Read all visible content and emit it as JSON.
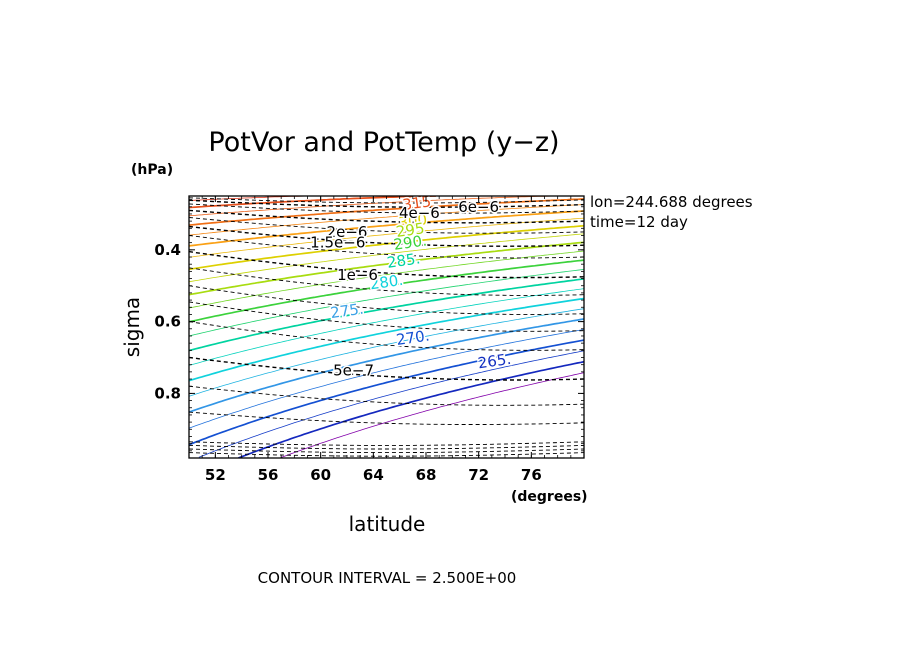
{
  "chart_data": {
    "type": "contour",
    "title": "PotVor and PotTemp (y−z)",
    "xlabel": "latitude",
    "xunit": "(degrees)",
    "ylabel": "sigma",
    "yunit": "(hPa)",
    "xlim": [
      50,
      80
    ],
    "ylim": [
      0.25,
      0.98
    ],
    "xticks": [
      52,
      56,
      60,
      64,
      68,
      72,
      76
    ],
    "xtick_labels": [
      "52",
      "56",
      "60",
      "64",
      "68",
      "72",
      "76"
    ],
    "yticks": [
      0.4,
      0.6,
      0.8
    ],
    "ytick_labels": [
      "0.4",
      "0.6",
      "0.8"
    ],
    "annotations": [
      "lon=244.688 degrees",
      "time=12 day"
    ],
    "footer": "CONTOUR INTERVAL = 2.500E+00",
    "pottemp_labels": [
      {
        "text": "315",
        "value": 315,
        "lat": 67.3,
        "sigma": 0.27,
        "color": "#e8501c"
      },
      {
        "text": "300",
        "value": 300,
        "lat": 67.0,
        "sigma": 0.32,
        "color": "#ddd000"
      },
      {
        "text": "295",
        "value": 295,
        "lat": 66.8,
        "sigma": 0.345,
        "color": "#a8dc10"
      },
      {
        "text": "290.",
        "value": 290,
        "lat": 66.8,
        "sigma": 0.38,
        "color": "#3cd23c"
      },
      {
        "text": "285.",
        "value": 285,
        "lat": 66.3,
        "sigma": 0.43,
        "color": "#00d3a0"
      },
      {
        "text": "280.",
        "value": 280,
        "lat": 65.0,
        "sigma": 0.49,
        "color": "#10d2dc"
      },
      {
        "text": "275.",
        "value": 275,
        "lat": 62.0,
        "sigma": 0.57,
        "color": "#3ca2e6"
      },
      {
        "text": "270.",
        "value": 270,
        "lat": 67.0,
        "sigma": 0.645,
        "color": "#1450d2"
      },
      {
        "text": "265.",
        "value": 265,
        "lat": 73.2,
        "sigma": 0.71,
        "color": "#1430c0"
      }
    ],
    "potvor_labels": [
      {
        "text": "6e−6",
        "lat": 72.0,
        "sigma": 0.28
      },
      {
        "text": "4e−6",
        "lat": 67.5,
        "sigma": 0.297
      },
      {
        "text": "2e−6",
        "lat": 62.0,
        "sigma": 0.35
      },
      {
        "text": "1.5e−6",
        "lat": 61.3,
        "sigma": 0.38
      },
      {
        "text": "1e−6",
        "lat": 62.8,
        "sigma": 0.47
      },
      {
        "text": "5e−7",
        "lat": 62.5,
        "sigma": 0.736
      }
    ]
  }
}
